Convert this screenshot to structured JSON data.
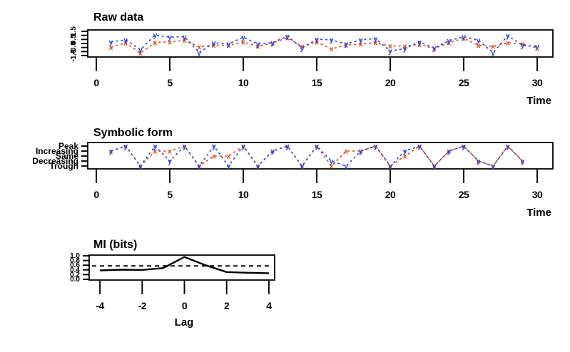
{
  "figure": {
    "background": "#ffffff",
    "axis_color": "#000000",
    "series_colors": {
      "x": "#e84517",
      "y": "#2442db"
    }
  },
  "chart_data": [
    {
      "type": "line",
      "title": "Raw data",
      "xlabel": "Time",
      "x_start": 1,
      "xlim": [
        0,
        30
      ],
      "x_ticks": [
        0,
        5,
        10,
        15,
        20,
        25,
        30
      ],
      "y_tick_labels": [
        "1.5",
        "1",
        "0.5",
        "0",
        "-0.5",
        "-1",
        "-1.5"
      ],
      "line_style": "dashed",
      "legend": "none",
      "series": [
        {
          "name": "x",
          "marker": "x",
          "color": "#e84517",
          "values": [
            0.36,
            0.56,
            0.11,
            0.58,
            0.6,
            0.67,
            0.38,
            0.45,
            0.45,
            0.6,
            0.4,
            0.55,
            0.78,
            0.4,
            0.6,
            0.29,
            0.46,
            0.5,
            0.56,
            0.42,
            0.42,
            0.49,
            0.31,
            0.56,
            0.76,
            0.45,
            0.4,
            0.56,
            0.51,
            0.33
          ]
        },
        {
          "name": "y",
          "marker": "y",
          "color": "#2442db",
          "values": [
            0.6,
            0.69,
            0.26,
            0.9,
            0.81,
            0.83,
            0.13,
            0.56,
            0.51,
            0.81,
            0.51,
            0.57,
            0.85,
            0.33,
            0.72,
            0.69,
            0.51,
            0.69,
            0.74,
            0.2,
            0.31,
            0.6,
            0.33,
            0.65,
            0.83,
            0.67,
            0.13,
            0.87,
            0.45,
            0.4
          ]
        }
      ]
    },
    {
      "type": "line",
      "title": "Symbolic form",
      "xlabel": "Time",
      "x_start": 1,
      "xlim": [
        0,
        30
      ],
      "x_ticks": [
        0,
        5,
        10,
        15,
        20,
        25,
        30
      ],
      "y_levels": [
        "Trough",
        "Decreasing",
        "Same",
        "Increasing",
        "Peak"
      ],
      "line_style": "dashed",
      "legend": "none",
      "series": [
        {
          "name": "x",
          "marker": "x",
          "color": "#e84517",
          "level_values": [
            3,
            4,
            0,
            3,
            3,
            4,
            0,
            2,
            2,
            4,
            0,
            3,
            4,
            0,
            4,
            0,
            3,
            3,
            4,
            0,
            2,
            4,
            0,
            3,
            4,
            1,
            0,
            4,
            1
          ]
        },
        {
          "name": "y",
          "marker": "y",
          "color": "#2442db",
          "level_values": [
            3,
            4,
            0,
            4,
            1,
            4,
            0,
            4,
            0,
            4,
            0,
            3,
            4,
            0,
            4,
            1,
            0,
            3,
            4,
            0,
            3,
            4,
            0,
            3,
            4,
            1,
            0,
            4,
            1
          ]
        }
      ]
    },
    {
      "type": "line",
      "title": "MI (bits)",
      "xlabel": "Lag",
      "x": [
        -4,
        -3,
        -2,
        -1,
        0,
        1,
        2,
        3,
        4
      ],
      "x_ticks": [
        -4,
        -2,
        0,
        2,
        4
      ],
      "ylim": [
        0,
        1
      ],
      "y_tick_labels": [
        "1.0",
        "0.8",
        "0.6",
        "0.4",
        "0.2",
        "0.0"
      ],
      "legend": "none",
      "series": [
        {
          "name": "MI",
          "style": "solid",
          "color": "#000000",
          "values": [
            0.38,
            0.41,
            0.4,
            0.48,
            0.95,
            0.6,
            0.31,
            0.28,
            0.26
          ]
        },
        {
          "name": "threshold",
          "style": "dashed",
          "color": "#000000",
          "value": 0.57
        }
      ]
    }
  ]
}
